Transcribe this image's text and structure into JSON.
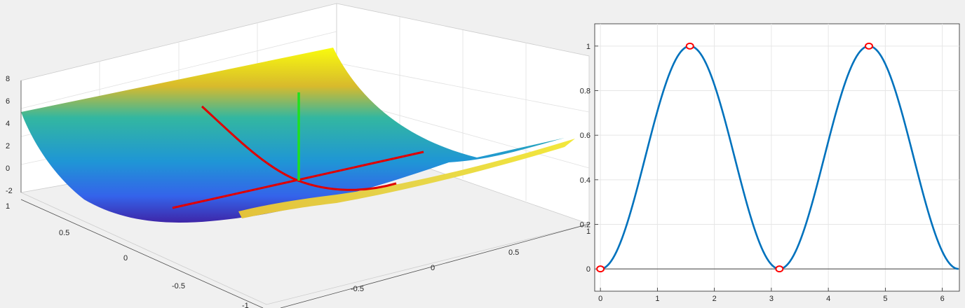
{
  "figure": {
    "background": "#f0f0f0"
  },
  "chart_data": [
    {
      "type": "surface",
      "colormap": "parula",
      "x_ticks": [
        "-1",
        "-0.5",
        "0",
        "0.5",
        "1"
      ],
      "y_ticks": [
        "-0.5",
        "0",
        "0.5",
        "1"
      ],
      "z_ticks": [
        "-2",
        "0",
        "2",
        "4",
        "6",
        "8"
      ],
      "x_range": [
        -1,
        1
      ],
      "y_range": [
        -1,
        1
      ],
      "z_range": [
        -2,
        8
      ],
      "grid": true,
      "surface_function": "z = 6*x^2 over saddle-like fold",
      "overlay_lines": [
        {
          "color": "#ff0000",
          "description": "principal curvature curve"
        },
        {
          "color": "#ff0000",
          "description": "straight axis"
        },
        {
          "color": "#00ff00",
          "description": "normal vector"
        }
      ]
    },
    {
      "type": "line",
      "x_ticks": [
        "0",
        "1",
        "2",
        "3",
        "4",
        "5",
        "6"
      ],
      "y_ticks": [
        "0",
        "0.2",
        "0.4",
        "0.6",
        "0.8",
        "1"
      ],
      "xlim": [
        -0.1,
        6.3
      ],
      "ylim": [
        -0.1,
        1.1
      ],
      "grid": true,
      "series": [
        {
          "function": "sin(x)^2",
          "color": "#0072bd",
          "x_start": 0,
          "x_end": 6.2832,
          "samples": 200
        }
      ],
      "markers": [
        {
          "x": 0,
          "y": 0
        },
        {
          "x": 1.5708,
          "y": 1
        },
        {
          "x": 3.1416,
          "y": 0
        },
        {
          "x": 4.7124,
          "y": 1
        }
      ],
      "marker_color": "#ff0000",
      "baseline": {
        "y": 0,
        "color": "#555555"
      }
    }
  ]
}
